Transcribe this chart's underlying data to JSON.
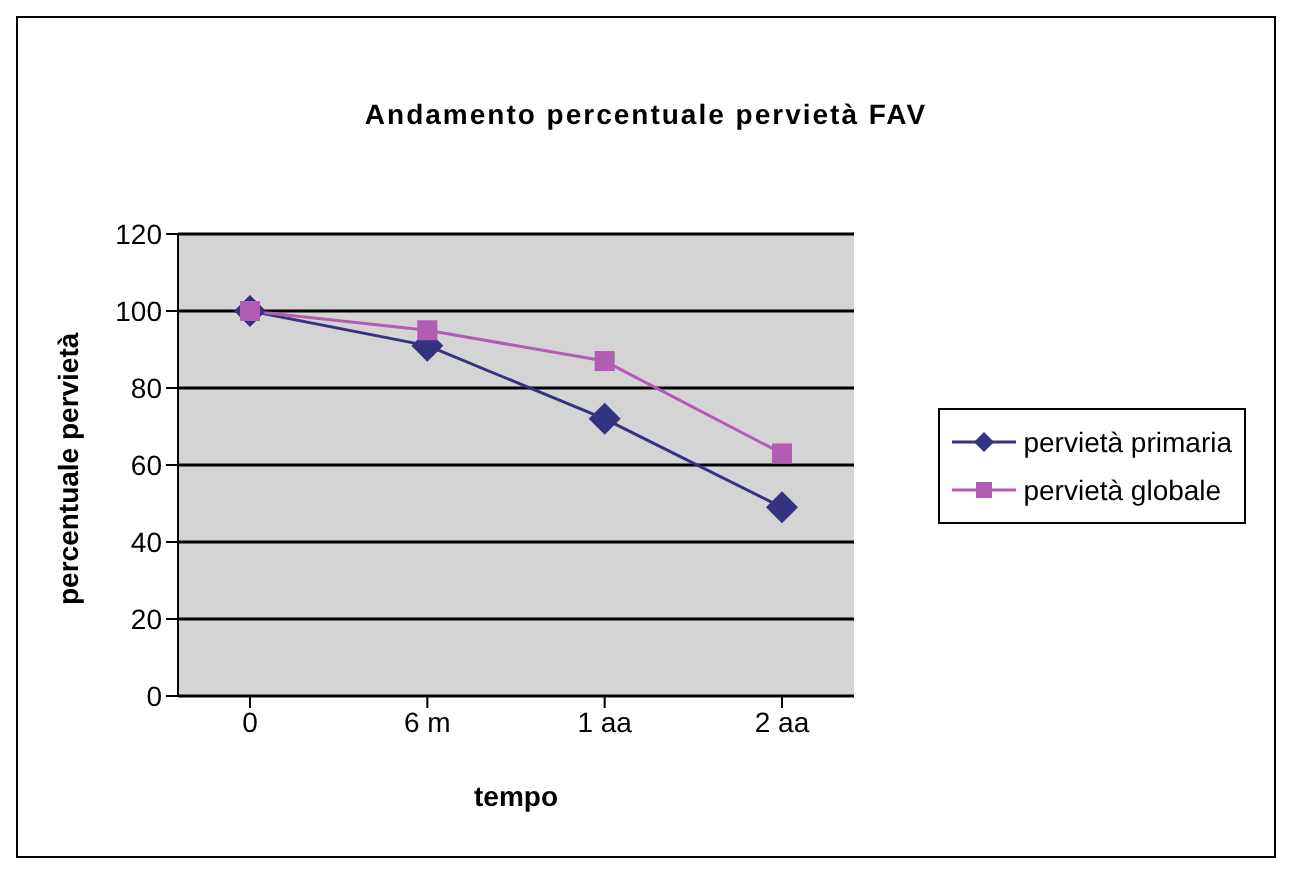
{
  "chart_data": {
    "type": "line",
    "title": "Andamento percentuale pervietà FAV",
    "xlabel": "tempo",
    "ylabel": "percentuale pervietà",
    "categories": [
      "0",
      "6 m",
      "1 aa",
      "2 aa"
    ],
    "series": [
      {
        "name": "pervietà primaria",
        "color": "#333380",
        "values": [
          100,
          91,
          72,
          49
        ],
        "marker": "diamond"
      },
      {
        "name": "pervietà globale",
        "color": "#b35cb3",
        "values": [
          100,
          95,
          87,
          63
        ],
        "marker": "square"
      }
    ],
    "ylim": [
      0,
      120
    ],
    "yticks": [
      0,
      20,
      40,
      60,
      80,
      100,
      120
    ],
    "grid": "y",
    "legend": "right"
  }
}
